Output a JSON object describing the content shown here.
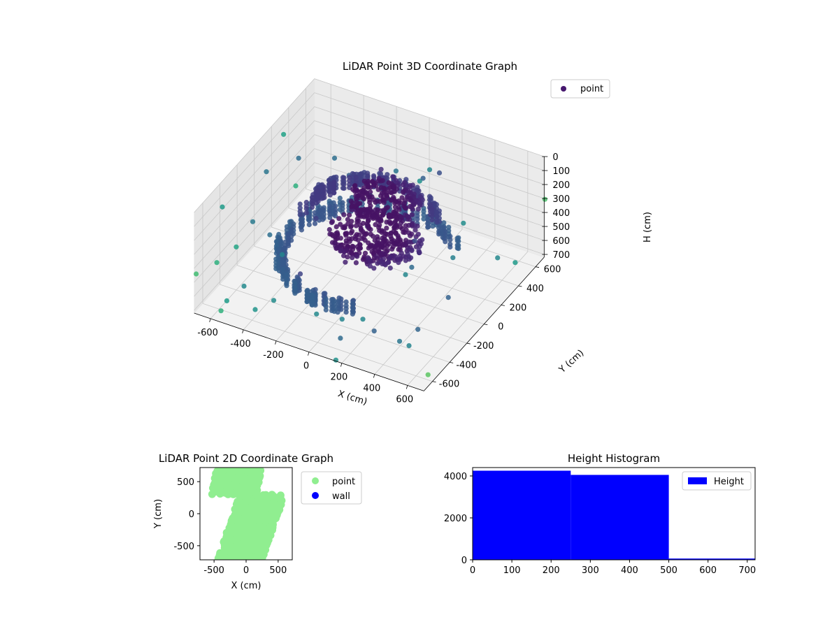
{
  "chart_data": [
    {
      "type": "scatter",
      "projection": "3d",
      "title": "LiDAR Point 3D Coordinate Graph",
      "xlabel": "X (cm)",
      "ylabel": "Y (cm)",
      "zlabel": "H (cm)",
      "xlim": [
        -700,
        700
      ],
      "ylim": [
        -700,
        700
      ],
      "zlim": [
        0,
        720
      ],
      "z_axis_inverted": true,
      "xticks": [
        "-600",
        "-400",
        "-200",
        "0",
        "200",
        "400",
        "600"
      ],
      "yticks": [
        "-600",
        "-400",
        "-200",
        "0",
        "200",
        "400",
        "600"
      ],
      "zticks": [
        "0",
        "100",
        "200",
        "300",
        "400",
        "500",
        "600",
        "700"
      ],
      "legend": {
        "position": "top-right",
        "entries": [
          "point"
        ]
      },
      "colormap": "viridis",
      "grid": true,
      "description_clusters": [
        {
          "shape": "ring",
          "radius": 480,
          "h": 480
        },
        {
          "shape": "disk",
          "radius": 260,
          "h": 330
        },
        {
          "shape": "ring",
          "radius": 360,
          "h": 210
        },
        {
          "shape": "blob",
          "radius": 200,
          "h": 120
        }
      ]
    },
    {
      "type": "scatter",
      "title": "LiDAR Point 2D Coordinate Graph",
      "xlabel": "X (cm)",
      "ylabel": "Y (cm)",
      "xlim": [
        -720,
        720
      ],
      "ylim": [
        -720,
        720
      ],
      "xticks": [
        "-500",
        "0",
        "500"
      ],
      "yticks": [
        "-500",
        "0",
        "500"
      ],
      "legend": {
        "position": "right-outside",
        "entries": [
          {
            "name": "point",
            "color": "#90ee90"
          },
          {
            "name": "wall",
            "color": "#0000ff"
          }
        ]
      },
      "series": [
        {
          "name": "point",
          "color": "#90ee90"
        },
        {
          "name": "wall",
          "color": "#0000ff"
        }
      ]
    },
    {
      "type": "bar",
      "title": "Height Histogram",
      "xlabel": "",
      "ylabel": "",
      "xlim": [
        0,
        720
      ],
      "ylim": [
        0,
        4400
      ],
      "xticks": [
        "0",
        "100",
        "200",
        "300",
        "400",
        "500",
        "600",
        "700"
      ],
      "yticks": [
        "0",
        "2000",
        "4000"
      ],
      "legend": {
        "position": "top-right",
        "entries": [
          "Height"
        ]
      },
      "color": "#0000ff",
      "bins": [
        {
          "start": 0,
          "end": 250,
          "count": 4250
        },
        {
          "start": 250,
          "end": 500,
          "count": 4050
        },
        {
          "start": 500,
          "end": 750,
          "count": 60
        }
      ]
    }
  ]
}
